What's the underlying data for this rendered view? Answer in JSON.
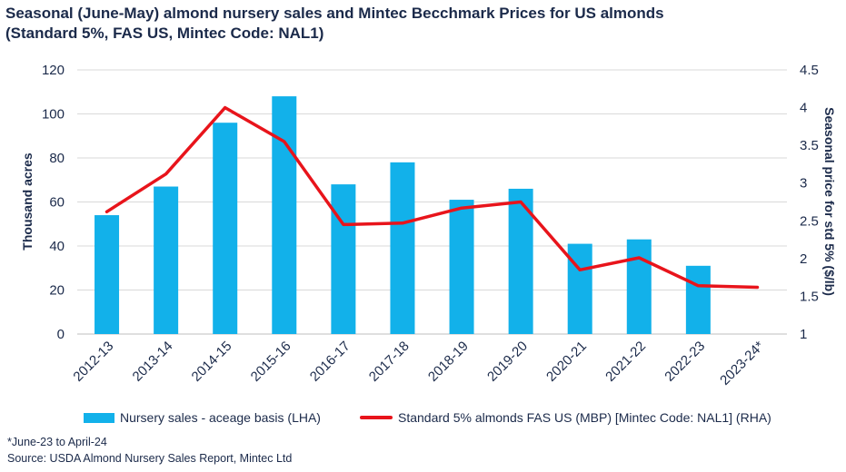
{
  "title_line1": "Seasonal (June-May) almond nursery sales and Mintec Becchmark Prices for US almonds",
  "title_line2": "(Standard 5%, FAS US, Mintec Code: NAL1)",
  "footnote": "*June-23 to April-24",
  "source": "Source: USDA Almond Nursery Sales Report, Mintec Ltd",
  "colors": {
    "bar": "#12b1ea",
    "line": "#e8141b",
    "text": "#1b2a4a",
    "grid": "#d9d9d9"
  },
  "chart_data": {
    "type": "bar+line",
    "categories": [
      "2012-13",
      "2013-14",
      "2014-15",
      "2015-16",
      "2016-17",
      "2017-18",
      "2018-19",
      "2019-20",
      "2020-21",
      "2021-22",
      "2022-23",
      "2023-24*"
    ],
    "series": [
      {
        "name": "Nursery sales - aceage basis (LHA)",
        "type": "bar",
        "axis": "left",
        "values": [
          54,
          67,
          96,
          108,
          68,
          78,
          61,
          66,
          41,
          43,
          31,
          null
        ]
      },
      {
        "name": "Standard 5% almonds FAS US (MBP) [Mintec Code: NAL1]  (RHA)",
        "type": "line",
        "axis": "right",
        "values": [
          2.62,
          3.12,
          4.0,
          3.55,
          2.45,
          2.47,
          2.67,
          2.75,
          1.85,
          2.01,
          1.64,
          1.62
        ]
      }
    ],
    "y_left": {
      "label": "Thousand acres",
      "range": [
        0,
        120
      ],
      "ticks": [
        "0",
        "20",
        "40",
        "60",
        "80",
        "100",
        "120"
      ]
    },
    "y_right": {
      "label": "Seasonal price for std 5% ($/lb)",
      "range": [
        1,
        4.5
      ],
      "ticks": [
        "1",
        "1.5",
        "2",
        "2.5",
        "3",
        "3.5",
        "4",
        "4.5"
      ]
    },
    "grid": true,
    "legend_position": "bottom"
  }
}
